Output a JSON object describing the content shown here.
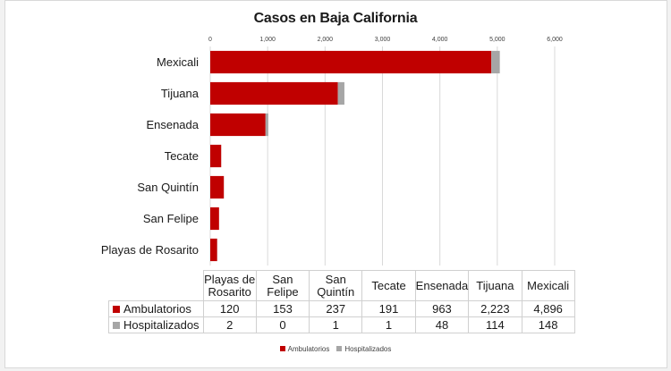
{
  "chart_data": {
    "type": "bar",
    "orientation": "horizontal",
    "stacked": true,
    "title": "Casos en Baja California",
    "categories": [
      "Mexicali",
      "Tijuana",
      "Ensenada",
      "Tecate",
      "San Quintín",
      "San Felipe",
      "Playas de Rosarito"
    ],
    "series": [
      {
        "name": "Ambulatorios",
        "values": [
          4896,
          2223,
          963,
          191,
          237,
          153,
          120
        ]
      },
      {
        "name": "Hospitalizados",
        "values": [
          148,
          114,
          48,
          1,
          1,
          0,
          2
        ]
      }
    ],
    "xlim": [
      0,
      6000
    ],
    "x_ticks": [
      "0",
      "1,000",
      "2,000",
      "3,000",
      "4,000",
      "5,000",
      "6,000"
    ],
    "x_axis_position": "top",
    "grid": true,
    "legend_position": "bottom",
    "colors": {
      "Ambulatorios": "#c00000",
      "Hospitalizados": "#a6a6a6"
    },
    "data_table": {
      "columns": [
        "Playas de Rosarito",
        "San Felipe",
        "San Quintín",
        "Tecate",
        "Ensenada",
        "Tijuana",
        "Mexicali"
      ],
      "rows": [
        {
          "label": "Ambulatorios",
          "values": [
            "120",
            "153",
            "237",
            "191",
            "963",
            "2,223",
            "4,896"
          ]
        },
        {
          "label": "Hospitalizados",
          "values": [
            "2",
            "0",
            "1",
            "1",
            "48",
            "114",
            "148"
          ]
        }
      ]
    }
  }
}
